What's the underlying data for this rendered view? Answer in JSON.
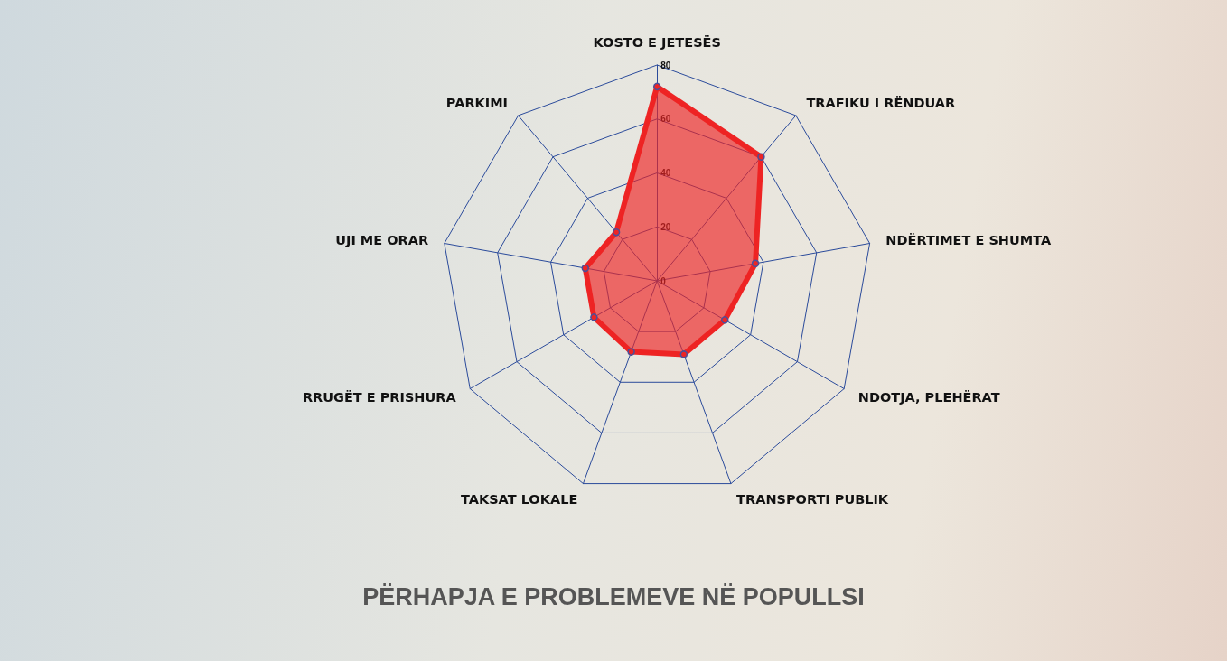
{
  "chart_data": {
    "type": "radar",
    "title": "PËRHAPJA E PROBLEMEVE NË POPULLSI",
    "categories": [
      "KOSTO E JETESËS",
      "TRAFIKU I RËNDUAR",
      "NDËRTIMET E SHUMTA",
      "NDOTJA, PLEHËRAT",
      "TRANSPORTI PUBLIK",
      "TAKSAT LOKALE",
      "RRUGËT E PRISHURA",
      "UJI ME ORAR",
      "PARKIMI"
    ],
    "series": [
      {
        "color": "#ee2424",
        "values": [
          72,
          60,
          37,
          29,
          29,
          28,
          27,
          27,
          23.5
        ]
      }
    ],
    "ylim": [
      0,
      80
    ],
    "yticks": [
      0,
      20,
      40,
      60,
      80
    ],
    "marker": "circle"
  }
}
